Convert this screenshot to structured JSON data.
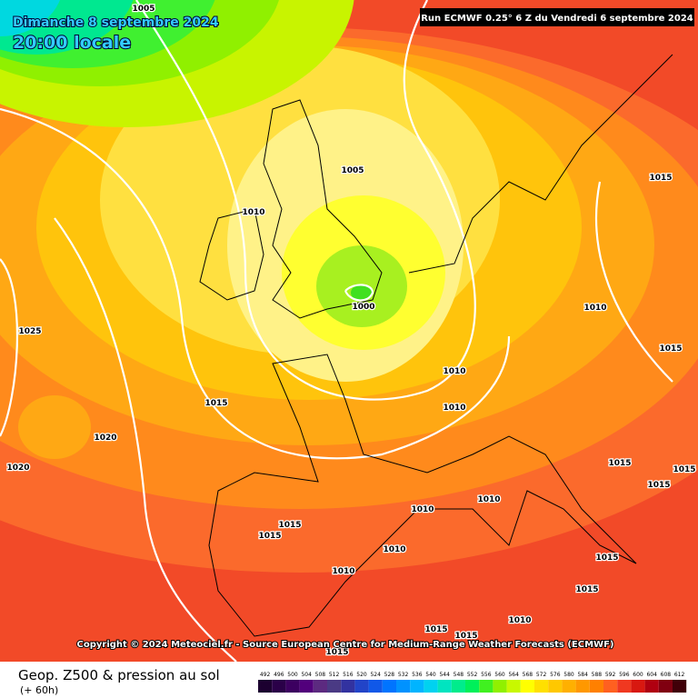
{
  "header": {
    "date": "Dimanche 8 septembre 2024",
    "time": "20:00 locale",
    "run": "Run ECMWF 0.25° 6 Z du Vendredi 6 septembre 2024"
  },
  "isobar_labels": [
    1005,
    1005,
    1010,
    1000,
    1025,
    1015,
    1020,
    1020,
    1010,
    1010,
    1015,
    1010,
    1015,
    1015,
    1015,
    1015,
    1010,
    1010,
    1015,
    1015,
    1010,
    1010,
    1015,
    1015,
    1010,
    1015,
    1015,
    1015
  ],
  "copyright": "Copyright © 2024 Meteociel.fr - Source European Centre for Medium-Range Weather Forecasts (ECMWF)",
  "footer": {
    "title": "Geop. Z500 & pression au sol",
    "lead": "(+ 60h)"
  },
  "scale": {
    "values": [
      492,
      496,
      500,
      504,
      508,
      512,
      516,
      520,
      524,
      528,
      532,
      536,
      540,
      544,
      548,
      552,
      556,
      560,
      564,
      568,
      572,
      576,
      580,
      584,
      588,
      592,
      596,
      600,
      604,
      608,
      612
    ],
    "colors": [
      "#1c0030",
      "#2a0048",
      "#3c0060",
      "#52007c",
      "#5c2a80",
      "#4a3a84",
      "#3232a0",
      "#2244c8",
      "#1058e8",
      "#0074ff",
      "#0092ff",
      "#00b4ff",
      "#00d2f0",
      "#00e4c0",
      "#00ec8c",
      "#00f05a",
      "#40f020",
      "#90f000",
      "#c8f800",
      "#ffff00",
      "#ffe000",
      "#ffc800",
      "#ffb000",
      "#ff9800",
      "#ff8000",
      "#ff6020",
      "#f03820",
      "#d81810",
      "#b00010",
      "#800010",
      "#400008"
    ]
  }
}
